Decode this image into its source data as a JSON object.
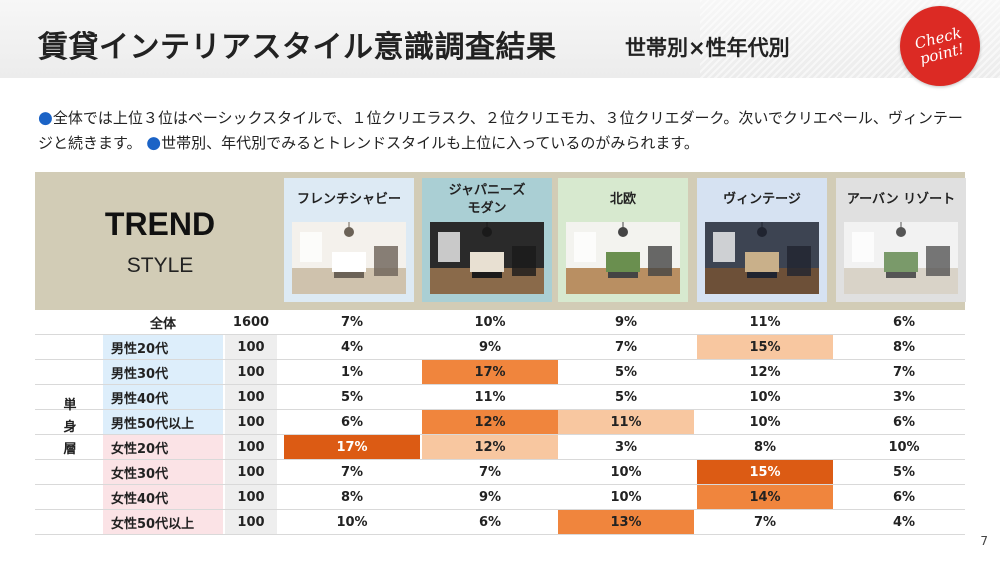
{
  "header": {
    "title": "賃貸インテリアスタイル意識調査結果",
    "subtitle": "世帯別×性年代別",
    "badge_text": "Check point!"
  },
  "intro": {
    "text1": "全体では上位３位はベーシックスタイルで、１位クリエラスク、２位クリエモカ、３位クリエダーク。次いでクリエペール、ヴィンテージと続きます。",
    "text2": "世帯別、年代別でみるとトレンドスタイルも上位に入っているのがみられます。"
  },
  "panel": {
    "trend": "TREND",
    "style": "STYLE"
  },
  "styles": [
    {
      "name": "フレンチシャビー",
      "bg": "#ddeaf4"
    },
    {
      "name": "ジャパニーズ\nモダン",
      "bg": "#aacfd4"
    },
    {
      "name": "北欧",
      "bg": "#d7e9cf"
    },
    {
      "name": "ヴィンテージ",
      "bg": "#d6e2f2"
    },
    {
      "name": "アーバン リゾート",
      "bg": "#e0e0e0"
    }
  ],
  "table": {
    "group_label": "単\n身\n層",
    "rows": [
      {
        "label": "全体",
        "n": "1600",
        "vals": [
          "7%",
          "10%",
          "9%",
          "11%",
          "6%"
        ]
      },
      {
        "label": "男性20代",
        "n": "100",
        "vals": [
          "4%",
          "9%",
          "7%",
          "15%",
          "8%"
        ]
      },
      {
        "label": "男性30代",
        "n": "100",
        "vals": [
          "1%",
          "17%",
          "5%",
          "12%",
          "7%"
        ]
      },
      {
        "label": "男性40代",
        "n": "100",
        "vals": [
          "5%",
          "11%",
          "5%",
          "10%",
          "3%"
        ]
      },
      {
        "label": "男性50代以上",
        "n": "100",
        "vals": [
          "6%",
          "12%",
          "11%",
          "10%",
          "6%"
        ]
      },
      {
        "label": "女性20代",
        "n": "100",
        "vals": [
          "17%",
          "12%",
          "3%",
          "8%",
          "10%"
        ]
      },
      {
        "label": "女性30代",
        "n": "100",
        "vals": [
          "7%",
          "7%",
          "10%",
          "15%",
          "5%"
        ]
      },
      {
        "label": "女性40代",
        "n": "100",
        "vals": [
          "8%",
          "9%",
          "10%",
          "14%",
          "6%"
        ]
      },
      {
        "label": "女性50代以上",
        "n": "100",
        "vals": [
          "10%",
          "6%",
          "13%",
          "7%",
          "4%"
        ]
      }
    ],
    "highlights": [
      [
        "",
        "",
        "",
        "",
        ""
      ],
      [
        "",
        "",
        "",
        "light",
        ""
      ],
      [
        "",
        "mid",
        "",
        "",
        ""
      ],
      [
        "",
        "",
        "",
        "",
        ""
      ],
      [
        "",
        "mid",
        "light",
        "",
        ""
      ],
      [
        "dark",
        "light",
        "",
        "",
        ""
      ],
      [
        "",
        "",
        "",
        "dark",
        ""
      ],
      [
        "",
        "",
        "",
        "mid",
        ""
      ],
      [
        "",
        "",
        "mid",
        "",
        ""
      ]
    ],
    "colors": {
      "light": "#f8c7a0",
      "mid": "#f0853d",
      "dark": "#dc5b14",
      "male_bg": "#ddeefb",
      "female_bg": "#fbe3e6",
      "n_bg": "#eeeeee"
    }
  },
  "page_number": "7"
}
